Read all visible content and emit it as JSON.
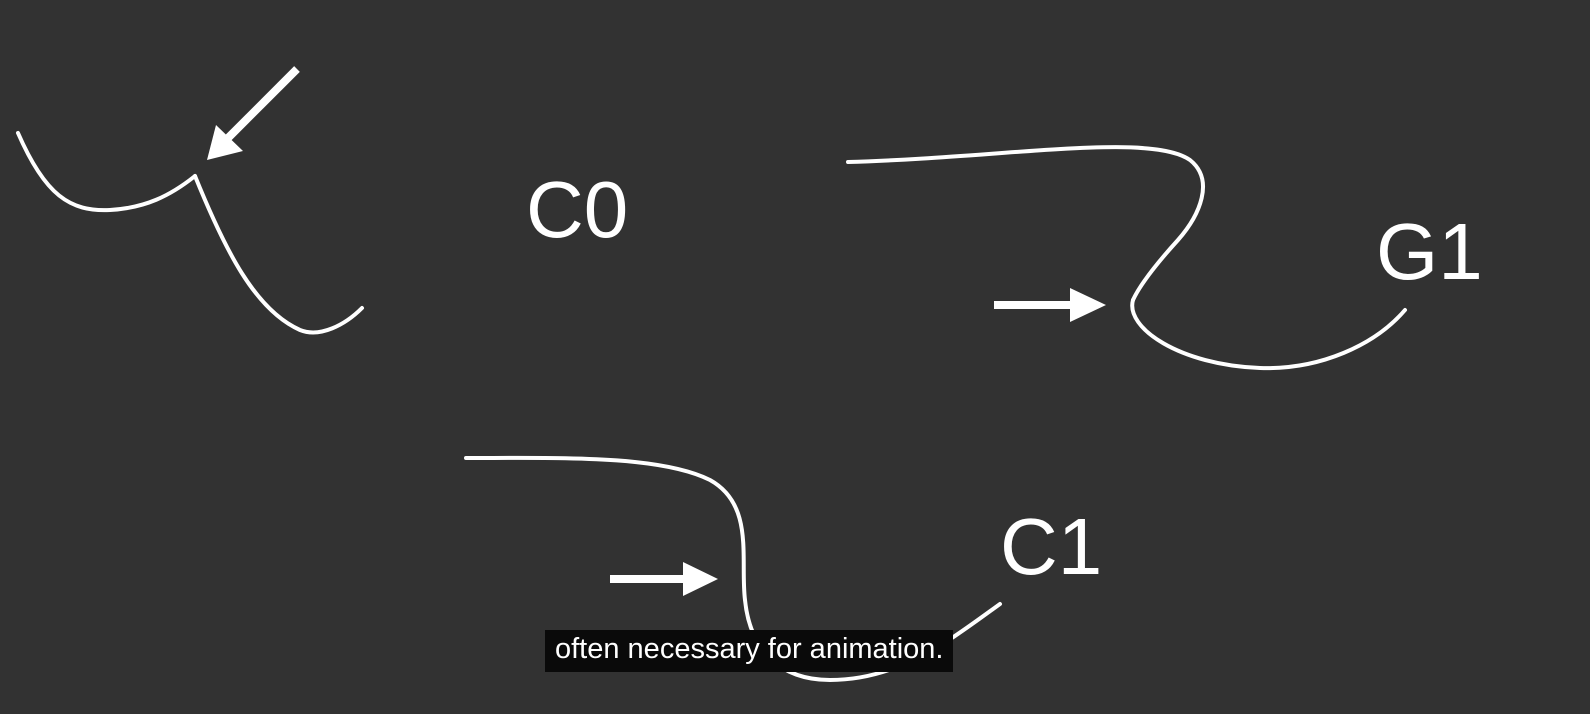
{
  "diagram": {
    "labels": {
      "c0": "C0",
      "g1": "G1",
      "c1": "C1"
    }
  },
  "subtitle": {
    "text": "often necessary for animation."
  },
  "colors": {
    "background": "#323232",
    "stroke": "#ffffff",
    "caption_background": "#0a0a0a"
  }
}
